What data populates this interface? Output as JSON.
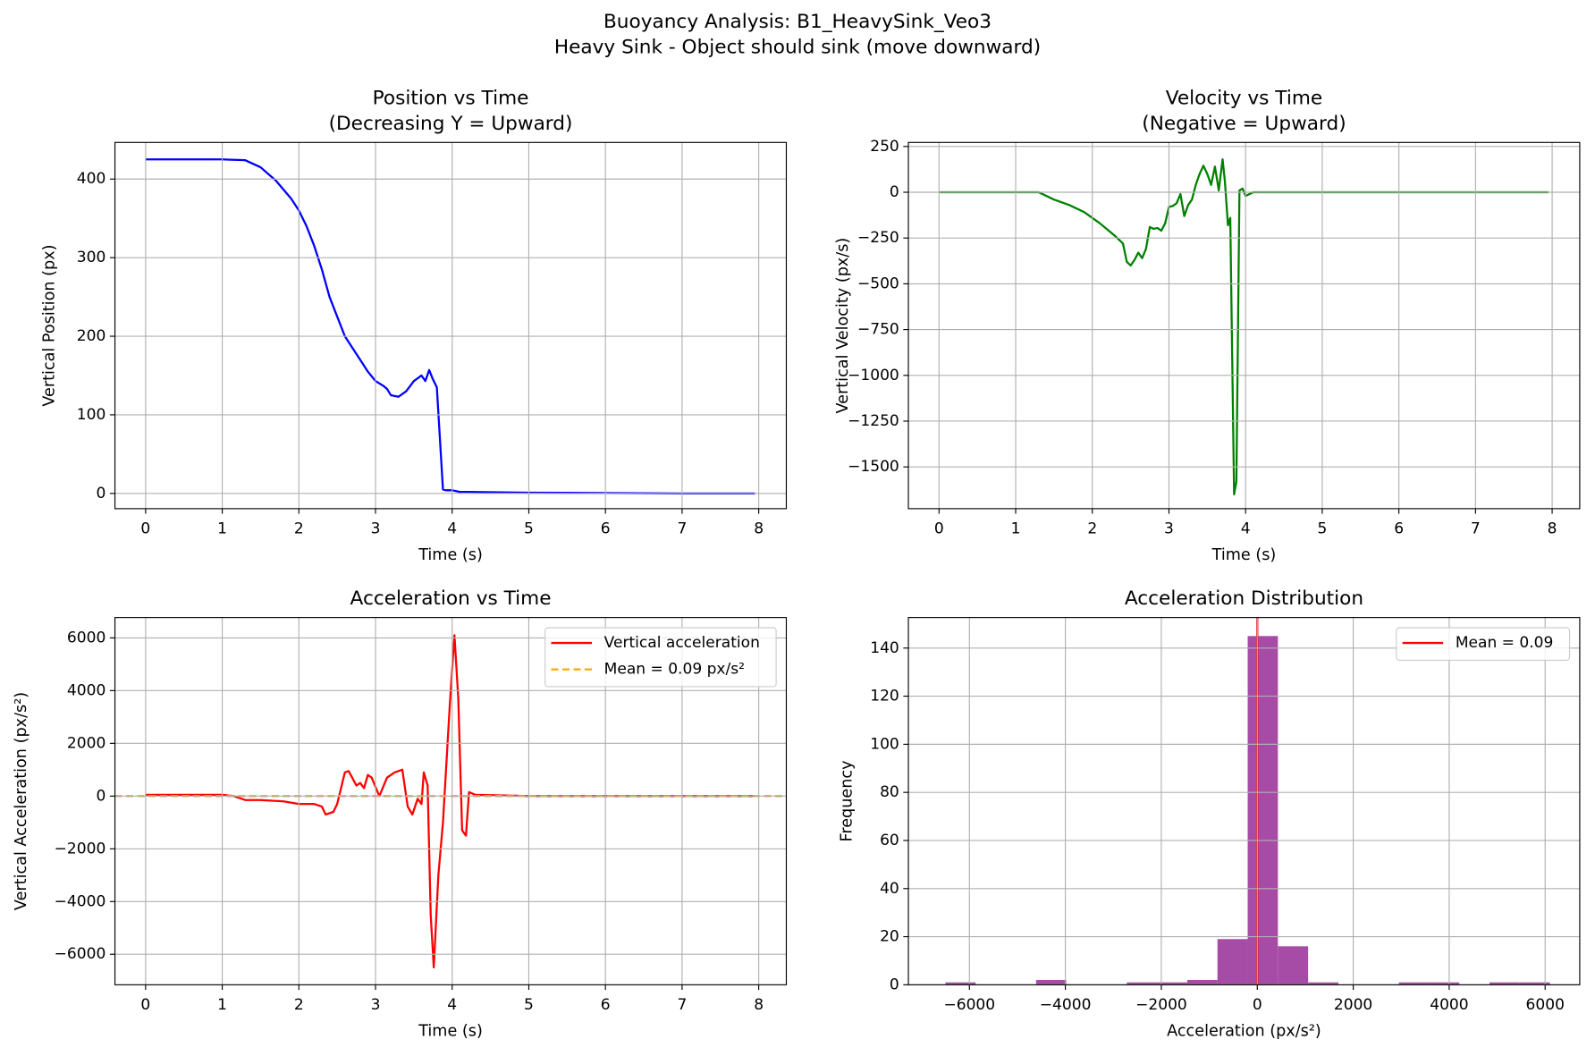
{
  "title": "Buoyancy Analysis: B1_HeavySink_Veo3",
  "subtitle": "Heavy Sink - Object should sink (move downward)",
  "chart_data": [
    {
      "type": "line",
      "title": "Position vs Time",
      "subtitle": "(Decreasing Y = Upward)",
      "xlabel": "Time (s)",
      "ylabel": "Vertical Position (px)",
      "x": [
        0,
        0.5,
        1,
        1.3,
        1.5,
        1.7,
        1.9,
        2.0,
        2.1,
        2.2,
        2.3,
        2.4,
        2.5,
        2.6,
        2.7,
        2.8,
        2.9,
        3.0,
        3.1,
        3.15,
        3.2,
        3.3,
        3.4,
        3.5,
        3.6,
        3.65,
        3.7,
        3.75,
        3.8,
        3.88,
        3.92,
        4.0,
        4.1,
        4.2,
        5,
        6,
        7,
        7.95
      ],
      "series": [
        {
          "name": "Position",
          "color": "#0000ff",
          "values": [
            425,
            425,
            425,
            424,
            415,
            398,
            375,
            360,
            340,
            315,
            285,
            250,
            225,
            200,
            185,
            170,
            155,
            143,
            137,
            133,
            125,
            123,
            130,
            143,
            150,
            143,
            157,
            145,
            135,
            5,
            4,
            4,
            2,
            2,
            1,
            0.5,
            0,
            0
          ]
        }
      ],
      "xlim": [
        -0.4,
        8.36
      ],
      "ylim": [
        -19.4,
        446.6
      ],
      "xticks": [
        0,
        1,
        2,
        3,
        4,
        5,
        6,
        7,
        8
      ],
      "yticks": [
        0,
        100,
        200,
        300,
        400
      ],
      "grid": true
    },
    {
      "type": "line",
      "title": "Velocity vs Time",
      "subtitle": "(Negative = Upward)",
      "xlabel": "Time (s)",
      "ylabel": "Vertical Velocity (px/s)",
      "x": [
        0,
        0.5,
        1,
        1.3,
        1.5,
        1.7,
        1.9,
        2.1,
        2.3,
        2.4,
        2.45,
        2.5,
        2.55,
        2.6,
        2.65,
        2.7,
        2.75,
        2.8,
        2.85,
        2.9,
        2.95,
        3.0,
        3.05,
        3.1,
        3.15,
        3.2,
        3.25,
        3.3,
        3.35,
        3.4,
        3.45,
        3.5,
        3.55,
        3.6,
        3.65,
        3.7,
        3.73,
        3.77,
        3.8,
        3.85,
        3.88,
        3.92,
        3.96,
        4.0,
        4.05,
        4.1,
        5,
        6,
        7,
        7.95
      ],
      "series": [
        {
          "name": "Velocity",
          "color": "#008000",
          "values": [
            0,
            0,
            0,
            0,
            -40,
            -70,
            -110,
            -170,
            -240,
            -280,
            -380,
            -400,
            -370,
            -330,
            -360,
            -310,
            -190,
            -200,
            -195,
            -210,
            -170,
            -80,
            -75,
            -60,
            -10,
            -130,
            -70,
            -40,
            40,
            100,
            145,
            100,
            40,
            140,
            10,
            180,
            60,
            -180,
            -140,
            -1650,
            -1580,
            10,
            20,
            -20,
            -10,
            0,
            0,
            0,
            0,
            0
          ]
        }
      ],
      "xlim": [
        -0.4,
        8.36
      ],
      "ylim": [
        -1728,
        272
      ],
      "xticks": [
        0,
        1,
        2,
        3,
        4,
        5,
        6,
        7,
        8
      ],
      "yticks": [
        {
          "value": -1500,
          "label": "−1500"
        },
        {
          "value": -1250,
          "label": "−1250"
        },
        {
          "value": -1000,
          "label": "−1000"
        },
        {
          "value": -750,
          "label": "−750"
        },
        {
          "value": -500,
          "label": "−500"
        },
        {
          "value": -250,
          "label": "−250"
        },
        0,
        250
      ],
      "grid": true
    },
    {
      "type": "line",
      "title": "Acceleration vs Time",
      "xlabel": "Time (s)",
      "ylabel": "Vertical Acceleration (px/s²)",
      "x": [
        0,
        1,
        1.15,
        1.3,
        1.5,
        1.8,
        2.0,
        2.2,
        2.3,
        2.35,
        2.45,
        2.5,
        2.6,
        2.65,
        2.75,
        2.8,
        2.85,
        2.9,
        2.95,
        3.05,
        3.15,
        3.25,
        3.35,
        3.42,
        3.48,
        3.55,
        3.6,
        3.63,
        3.68,
        3.72,
        3.76,
        3.82,
        3.88,
        3.97,
        4.03,
        4.08,
        4.13,
        4.18,
        4.22,
        4.3,
        5,
        6,
        7,
        7.95
      ],
      "series": [
        {
          "name": "Vertical acceleration",
          "color": "#ff0000",
          "values": [
            50,
            50,
            0,
            -150,
            -150,
            -200,
            -300,
            -300,
            -400,
            -700,
            -600,
            -300,
            900,
            950,
            400,
            500,
            300,
            800,
            700,
            0,
            700,
            900,
            1000,
            -400,
            -700,
            -100,
            -300,
            900,
            400,
            -4500,
            -6500,
            -3000,
            -1000,
            3500,
            6100,
            3700,
            -1300,
            -1500,
            150,
            50,
            0,
            0,
            0,
            0
          ]
        }
      ],
      "mean_line": {
        "name": "Mean = 0.09 px/s²",
        "value": 0.09,
        "color": "#ffa500",
        "dashed": true
      },
      "xlim": [
        -0.4,
        8.36
      ],
      "ylim": [
        -7157,
        6772
      ],
      "xticks": [
        0,
        1,
        2,
        3,
        4,
        5,
        6,
        7,
        8
      ],
      "yticks": [
        {
          "value": -6000,
          "label": "−6000"
        },
        {
          "value": -4000,
          "label": "−4000"
        },
        {
          "value": -2000,
          "label": "−2000"
        },
        0,
        2000,
        4000,
        6000
      ],
      "grid": true,
      "legend": "upper right"
    },
    {
      "type": "histogram",
      "title": "Acceleration Distribution",
      "xlabel": "Acceleration (px/s²)",
      "ylabel": "Frequency",
      "bins": [
        -6500,
        -5870,
        -5240,
        -4610,
        -3980,
        -3350,
        -2720,
        -2090,
        -1460,
        -830,
        -200,
        430,
        1060,
        1690,
        2320,
        2950,
        3580,
        4210,
        4840,
        5470,
        6100
      ],
      "values": [
        1,
        0,
        0,
        2,
        0,
        0,
        1,
        1,
        2,
        19,
        145,
        16,
        1,
        0,
        0,
        1,
        1,
        0,
        1,
        1
      ],
      "color": "#a64ca6",
      "mean_line": {
        "name": "Mean = 0.09",
        "value": 0.09,
        "color": "#ff0000",
        "dashed": false
      },
      "xlim": [
        -7272,
        6721
      ],
      "ylim": [
        0,
        152.7
      ],
      "xticks": [
        {
          "value": -6000,
          "label": "−6000"
        },
        {
          "value": -4000,
          "label": "−4000"
        },
        {
          "value": -2000,
          "label": "−2000"
        },
        0,
        2000,
        4000,
        6000
      ],
      "yticks": [
        0,
        20,
        40,
        60,
        80,
        100,
        120,
        140
      ],
      "grid": true,
      "legend": "upper right"
    }
  ]
}
